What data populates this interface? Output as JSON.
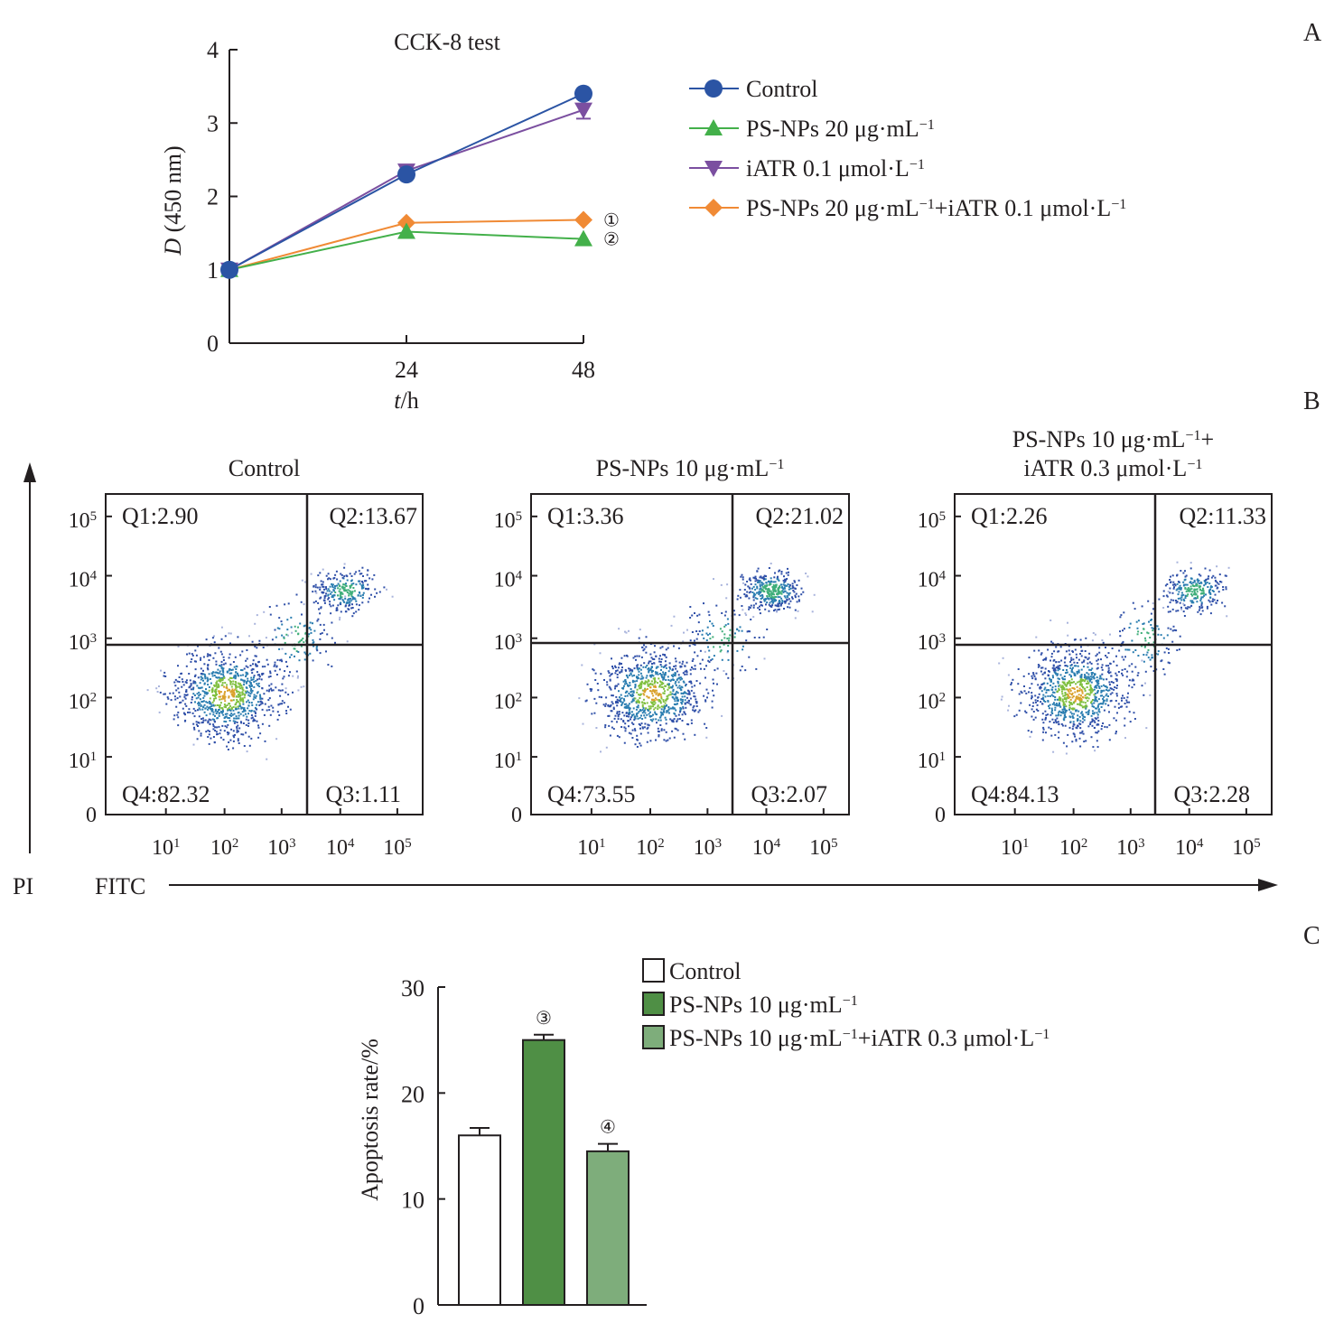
{
  "panel_labels": {
    "a": "A",
    "b": "B",
    "c": "C"
  },
  "colors": {
    "control": "#2b54a4",
    "psnps20": "#43b04a",
    "iatr": "#7b4fa0",
    "combo": "#f08a35",
    "bar_control": "#ffffff",
    "bar_psnps": "#4f8f45",
    "bar_combo": "#7ead7b",
    "axis": "#231f20"
  },
  "chart_data": [
    {
      "id": "A",
      "type": "line",
      "title": "CCK-8 test",
      "xlabel_italic": "t",
      "xlabel_rest": "/h",
      "ylabel_italic": "D",
      "ylabel_rest": " (450 nm)",
      "x": [
        0,
        24,
        48
      ],
      "xticks": [
        "24",
        "48"
      ],
      "xlim": [
        0,
        48
      ],
      "ylim": [
        0,
        4
      ],
      "yticks": [
        "0",
        "1",
        "2",
        "3",
        "4"
      ],
      "legend_position": "right",
      "series": [
        {
          "name": "Control",
          "marker": "circle",
          "values": [
            1.0,
            2.3,
            3.4
          ],
          "errors": [
            0,
            0.03,
            0.03
          ]
        },
        {
          "name": "PS-NPs 20 μg·mL⁻¹",
          "marker": "triangle-up",
          "values": [
            1.0,
            1.52,
            1.42
          ],
          "errors": [
            0,
            0.02,
            0.02
          ]
        },
        {
          "name": "iATR 0.1 μmol·L⁻¹",
          "marker": "triangle-down",
          "values": [
            1.0,
            2.35,
            3.18
          ],
          "errors": [
            0,
            0.03,
            0.12
          ]
        },
        {
          "name": "PS-NPs 20 μg·mL⁻¹+iATR 0.1 μmol·L⁻¹",
          "marker": "diamond",
          "values": [
            1.0,
            1.64,
            1.68
          ],
          "errors": [
            0,
            0.02,
            0.02
          ]
        }
      ],
      "annotations": [
        {
          "text": "①",
          "series": "PS-NPs 20 μg·mL⁻¹+iATR 0.1 μmol·L⁻¹",
          "x": 48
        },
        {
          "text": "②",
          "series": "PS-NPs 20 μg·mL⁻¹",
          "x": 48
        }
      ]
    },
    {
      "id": "B",
      "type": "scatter",
      "subtype": "flow-cytometry-quadrant",
      "xlabel": "FITC",
      "ylabel": "PI",
      "xticks": [
        "10¹",
        "10²",
        "10³",
        "10⁴",
        "10⁵"
      ],
      "yticks": [
        "0",
        "10¹",
        "10²",
        "10³",
        "10⁴",
        "10⁵"
      ],
      "panels": [
        {
          "title_lines": [
            "Control"
          ],
          "Q1": "Q1:2.90",
          "Q2": "Q2:13.67",
          "Q3": "Q3:1.11",
          "Q4": "Q4:82.32"
        },
        {
          "title_lines": [
            "PS-NPs 10 μg·mL⁻¹"
          ],
          "Q1": "Q1:3.36",
          "Q2": "Q2:21.02",
          "Q3": "Q3:2.07",
          "Q4": "Q4:73.55"
        },
        {
          "title_lines": [
            "PS-NPs 10 μg·mL⁻¹+",
            "iATR 0.3 μmol·L⁻¹"
          ],
          "Q1": "Q1:2.26",
          "Q2": "Q2:11.33",
          "Q3": "Q3:2.28",
          "Q4": "Q4:84.13"
        }
      ]
    },
    {
      "id": "C",
      "type": "bar",
      "ylabel": "Apoptosis rate/%",
      "ylim": [
        0,
        30
      ],
      "yticks": [
        "0",
        "10",
        "20",
        "30"
      ],
      "categories": [
        "Control",
        "PS-NPs 10 μg·mL⁻¹",
        "PS-NPs 10 μg·mL⁻¹+iATR 0.3 μmol·L⁻¹"
      ],
      "values": [
        16.0,
        25.0,
        14.5
      ],
      "errors": [
        0.7,
        0.5,
        0.7
      ],
      "annotations": [
        "",
        "③",
        "④"
      ],
      "legend_position": "top-right"
    }
  ]
}
